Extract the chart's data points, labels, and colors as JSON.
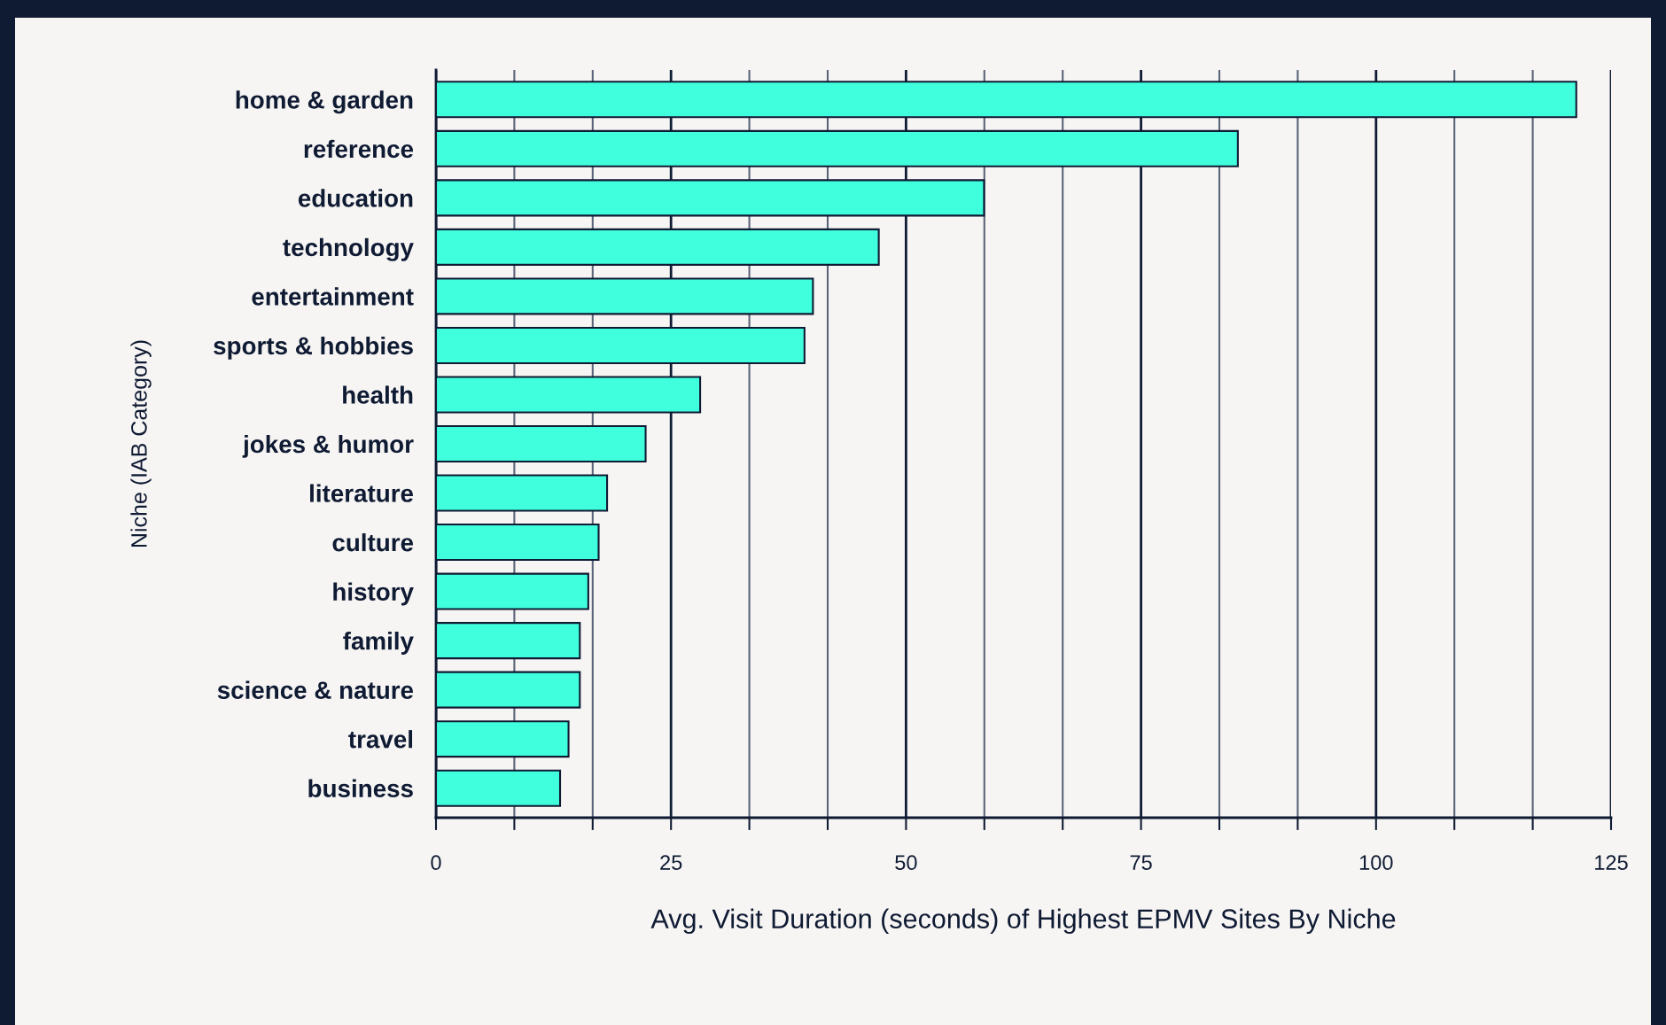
{
  "chart_data": {
    "type": "bar",
    "orientation": "horizontal",
    "xlabel": "Avg. Visit Duration (seconds) of Highest EPMV Sites By Niche",
    "ylabel": "Niche (IAB Category)",
    "categories": [
      "home & garden",
      "reference",
      "education",
      "technology",
      "entertainment",
      "sports & hobbies",
      "health",
      "jokes & humor",
      "literature",
      "culture",
      "history",
      "family",
      "science & nature",
      "travel",
      "business"
    ],
    "values": [
      121.3,
      85.3,
      58.3,
      47.1,
      40.1,
      39.2,
      28.1,
      22.3,
      18.2,
      17.3,
      16.2,
      15.3,
      15.3,
      14.1,
      13.2
    ],
    "color": "#40ffdd",
    "xlim": [
      0,
      125
    ],
    "xticks": [
      0,
      {
        "value": 8.333,
        "label": null
      },
      {
        "value": 16.667,
        "label": null
      },
      25,
      {
        "value": 33.333,
        "label": null
      },
      {
        "value": 41.667,
        "label": null
      },
      50,
      {
        "value": 58.333,
        "label": null
      },
      {
        "value": 66.667,
        "label": null
      },
      75,
      {
        "value": 83.333,
        "label": null
      },
      {
        "value": 91.667,
        "label": null
      },
      100,
      {
        "value": 108.333,
        "label": null
      },
      {
        "value": 116.667,
        "label": null
      },
      125
    ],
    "grid": "x"
  }
}
